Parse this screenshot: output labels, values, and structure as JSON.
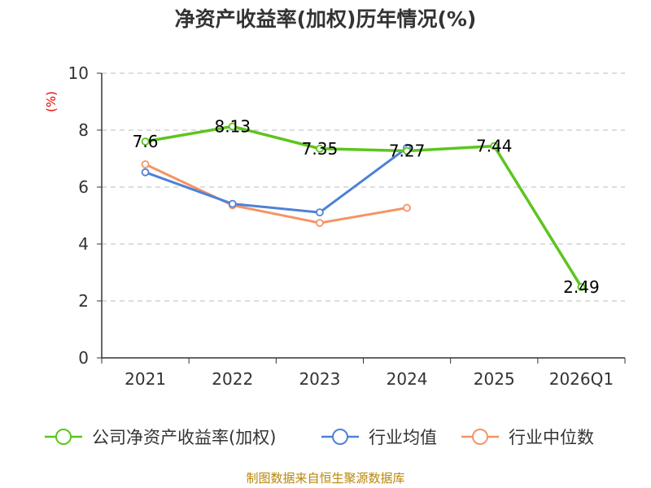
{
  "chart_data": {
    "type": "line",
    "title": "净资产收益率(加权)历年情况(%)",
    "ylabel": "(%)",
    "xlabel": "",
    "ylim": [
      0,
      10
    ],
    "yticks": [
      0,
      2,
      4,
      6,
      8,
      10
    ],
    "categories": [
      "2021",
      "2022",
      "2023",
      "2024",
      "2025",
      "2026Q1"
    ],
    "series": [
      {
        "name": "公司净资产收益率(加权)",
        "color": "#5cc51f",
        "values": [
          7.6,
          8.13,
          7.35,
          7.27,
          7.44,
          2.49
        ],
        "labels": [
          "7.6",
          "8.13",
          "7.35",
          "7.27",
          "7.44",
          "2.49"
        ]
      },
      {
        "name": "行业均值",
        "color": "#4f81d6",
        "values": [
          6.52,
          5.41,
          5.11,
          7.38,
          null,
          null
        ]
      },
      {
        "name": "行业中位数",
        "color": "#f59464",
        "values": [
          6.8,
          5.36,
          4.74,
          5.27,
          null,
          null
        ]
      }
    ],
    "grid": true,
    "legend": "bottom",
    "source": "制图数据来自恒生聚源数据库"
  }
}
